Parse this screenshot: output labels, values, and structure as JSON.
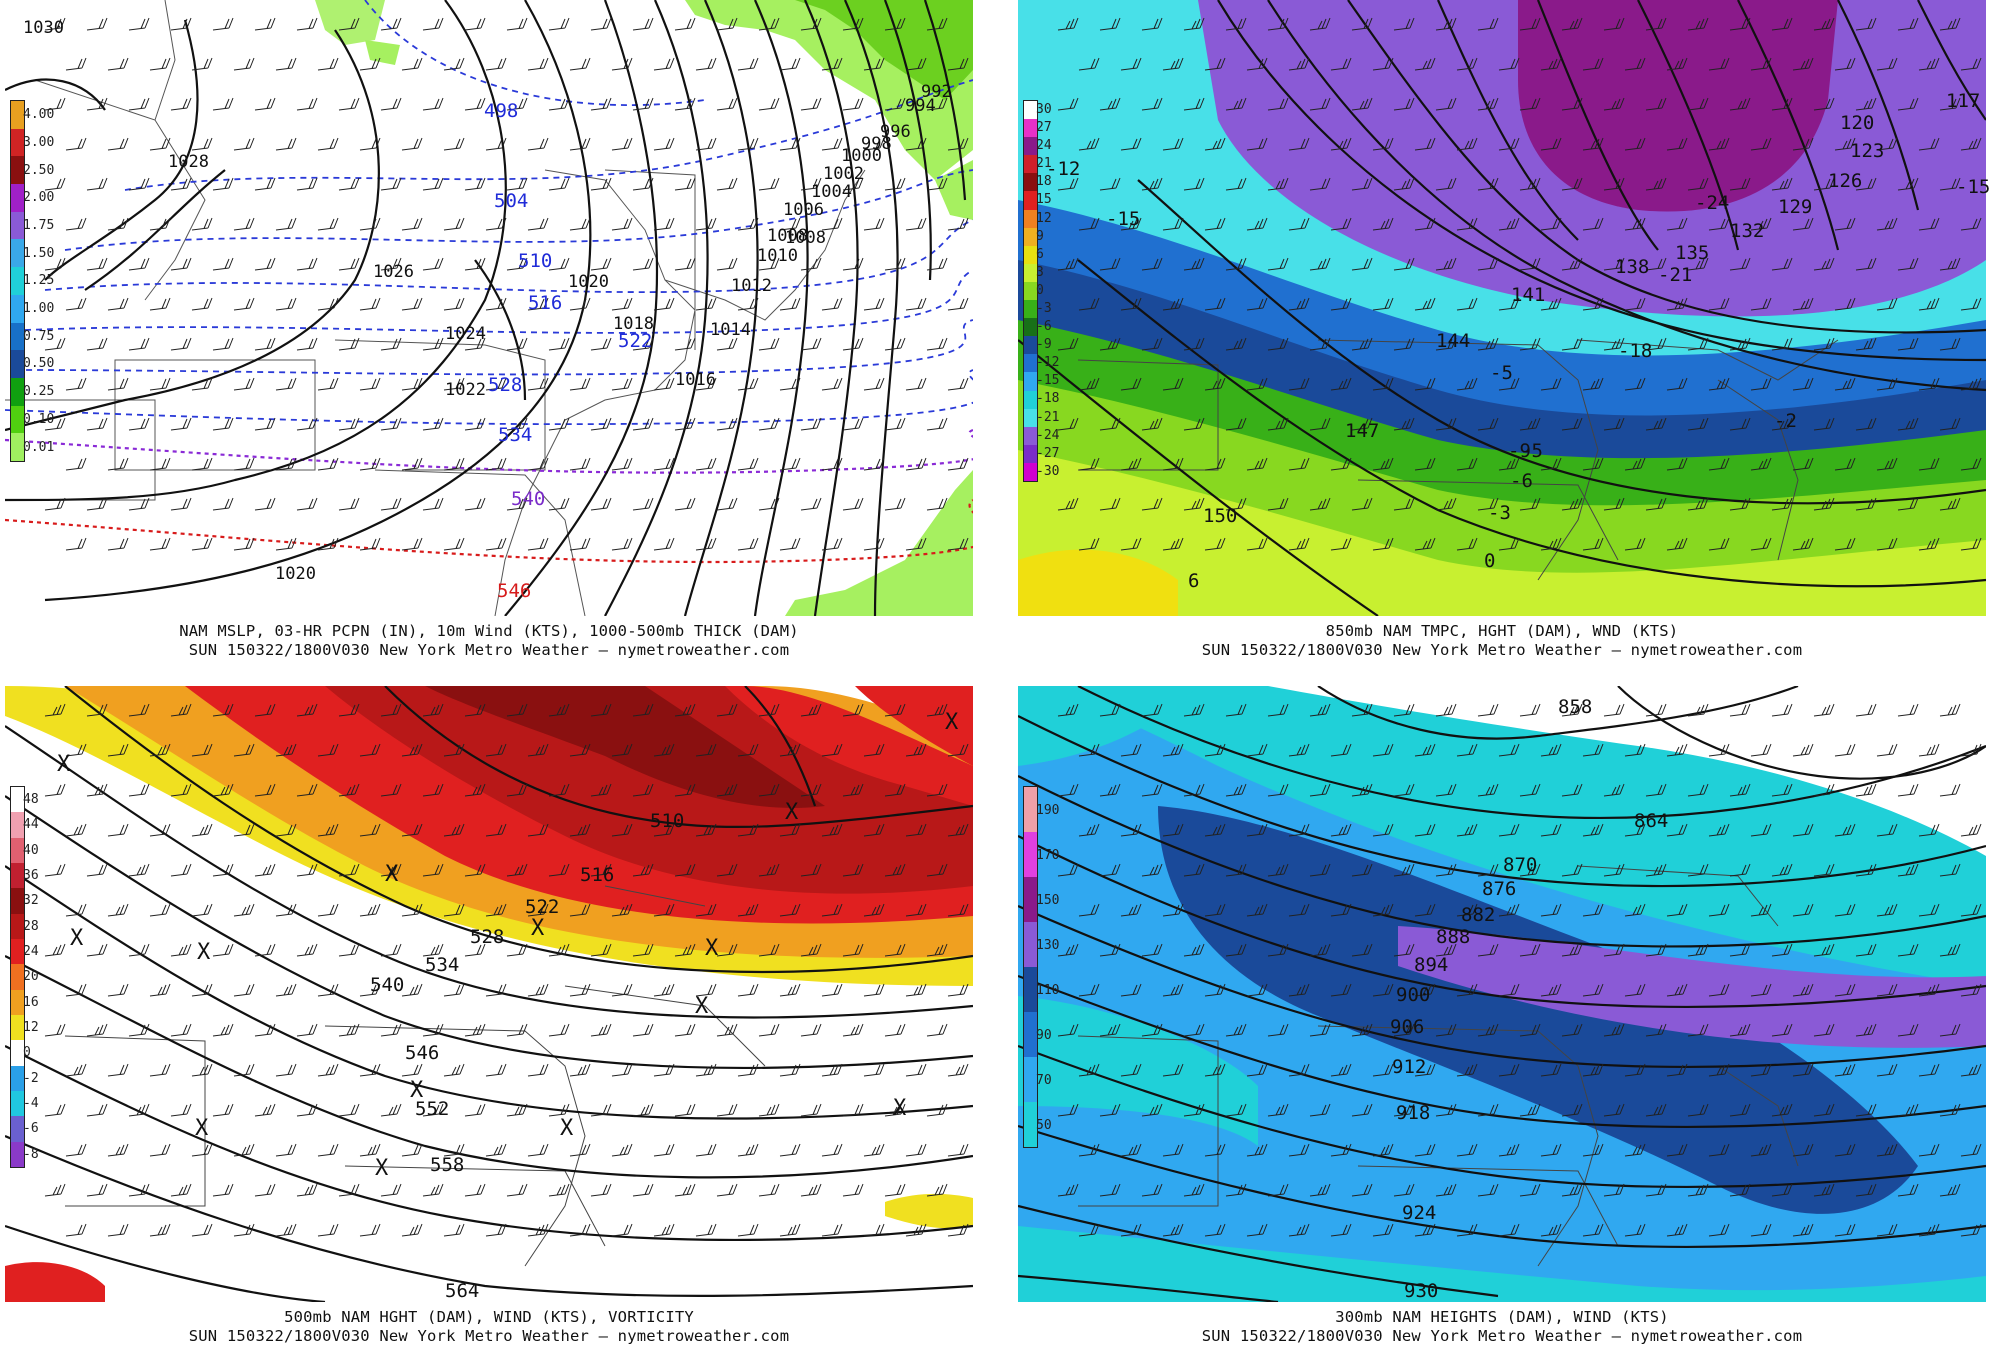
{
  "panels": [
    {
      "id": "mslp",
      "caption_line1": "NAM MSLP, 03-HR PCPN (IN), 10m Wind (KTS), 1000-500mb THICK (DAM)",
      "caption_line2": "SUN 150322/1800V030 New York Metro Weather — nymetroweather.com",
      "colorbar": {
        "labels": [
          "4.00",
          "3.00",
          "2.50",
          "2.00",
          "1.75",
          "1.50",
          "1.25",
          "1.00",
          "0.75",
          "0.50",
          "0.25",
          "0.10",
          "0.01"
        ],
        "colors": [
          "#e8a020",
          "#d02424",
          "#8a1010",
          "#a020c8",
          "#8a5ad6",
          "#3aa8e8",
          "#20d0d8",
          "#30a8f0",
          "#1870c8",
          "#1a4a9a",
          "#10a010",
          "#50d010",
          "#a0f060"
        ]
      },
      "isobar_labels": [
        "1030",
        "1028",
        "1026",
        "1024",
        "1022",
        "1020",
        "1020",
        "1018",
        "1016",
        "1014",
        "1012",
        "1010",
        "1008",
        "1008",
        "1006",
        "1004",
        "1002",
        "1000",
        "998",
        "996",
        "994",
        "992"
      ],
      "thickness_labels_blue": [
        "498",
        "504",
        "510",
        "516",
        "522",
        "528",
        "534"
      ],
      "thickness_label_purple": "540",
      "thickness_label_red": "546"
    },
    {
      "id": "t850",
      "caption_line1": "850mb NAM TMPC, HGHT (DAM), WND (KTS)",
      "caption_line2": "SUN 150322/1800V030 New York Metro Weather — nymetroweather.com",
      "colorbar": {
        "labels": [
          "30",
          "27",
          "24",
          "21",
          "18",
          "15",
          "12",
          "9",
          "6",
          "3",
          "0",
          "-3",
          "-6",
          "-9",
          "-12",
          "-15",
          "-18",
          "-21",
          "-24",
          "-27",
          "-30"
        ],
        "colors": [
          "#ffffff",
          "#e830c8",
          "#8a1a8a",
          "#d0202a",
          "#8a1010",
          "#e02020",
          "#f08020",
          "#f0b020",
          "#e8e010",
          "#c8f030",
          "#88d820",
          "#38b018",
          "#187018",
          "#1a4a9a",
          "#2070d0",
          "#30a8f0",
          "#20d0d8",
          "#48e0e8",
          "#8a5ad6",
          "#7a2bc9",
          "#d000d0"
        ]
      },
      "height_labels": [
        "117",
        "120",
        "123",
        "126",
        "129",
        "132",
        "135",
        "138",
        "141",
        "144",
        "147",
        "150"
      ],
      "temp_labels": [
        "-15",
        "-21",
        "-24",
        "-18",
        "-15",
        "-12",
        "-9",
        "-6",
        "-3",
        "0",
        "6",
        "-5",
        "-5",
        "-2"
      ]
    },
    {
      "id": "h500",
      "caption_line1": "500mb NAM HGHT (DAM), WIND (KTS), VORTICITY",
      "caption_line2": "SUN 150322/1800V030 New York Metro Weather — nymetroweather.com",
      "colorbar": {
        "labels": [
          "48",
          "44",
          "40",
          "36",
          "32",
          "28",
          "24",
          "20",
          "16",
          "12",
          "0",
          "-2",
          "-4",
          "-6",
          "-8"
        ],
        "colors": [
          "#ffffff",
          "#f0a0b0",
          "#e06070",
          "#c02030",
          "#8a1010",
          "#b81818",
          "#e02020",
          "#f07020",
          "#f0a020",
          "#f0e020",
          "#ffffff",
          "#2aa0e8",
          "#20c8e0",
          "#6a60d0",
          "#8a3ac8"
        ]
      },
      "height_labels": [
        "510",
        "516",
        "522",
        "528",
        "534",
        "540",
        "546",
        "552",
        "558",
        "564"
      ],
      "x_marks": [
        "X",
        "X",
        "X",
        "X",
        "X",
        "X",
        "X",
        "X",
        "X",
        "X",
        "X",
        "X",
        "X",
        "X"
      ]
    },
    {
      "id": "h300",
      "caption_line1": "300mb NAM HEIGHTS (DAM), WIND (KTS)",
      "caption_line2": "SUN 150322/1800V030 New York Metro Weather — nymetroweather.com",
      "colorbar": {
        "labels": [
          "190",
          "170",
          "150",
          "130",
          "110",
          "90",
          "70",
          "50"
        ],
        "colors": [
          "#f0a0a8",
          "#e040e0",
          "#8a1a8a",
          "#8a5ad6",
          "#1a4a9a",
          "#2070d0",
          "#30a8f0",
          "#20d0d8"
        ]
      },
      "height_labels": [
        "858",
        "864",
        "870",
        "876",
        "882",
        "888",
        "894",
        "900",
        "906",
        "912",
        "918",
        "924",
        "930"
      ]
    }
  ]
}
